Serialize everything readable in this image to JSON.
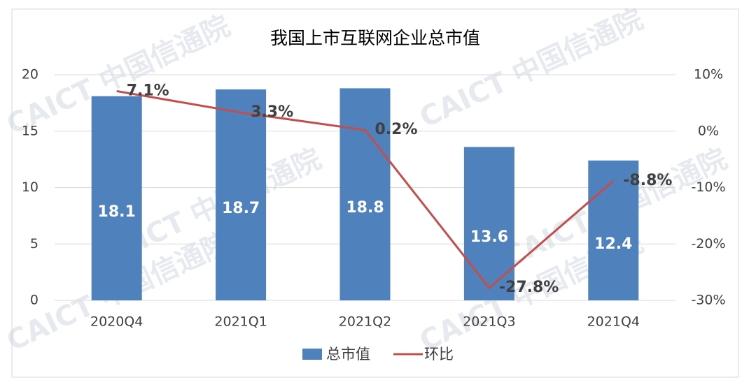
{
  "chart_data": {
    "type": "bar",
    "title": "我国上市互联网企业总市值",
    "watermark": "CAICT 中国信通院",
    "categories": [
      "2020Q4",
      "2021Q1",
      "2021Q2",
      "2021Q3",
      "2021Q4"
    ],
    "series": [
      {
        "name": "总市值",
        "type": "bar",
        "color": "#4f81bd",
        "values": [
          18.1,
          18.7,
          18.8,
          13.6,
          12.4
        ]
      },
      {
        "name": "环比",
        "type": "line",
        "axis": "y2",
        "color": "#c0504d",
        "values": [
          7.1,
          3.3,
          0.2,
          -27.8,
          -8.8
        ],
        "value_labels": [
          "7.1%",
          "3.3%",
          "0.2%",
          "-27.8%",
          "-8.8%"
        ]
      }
    ],
    "ylim": [
      0,
      20
    ],
    "yticks": [
      0,
      5,
      10,
      15,
      20
    ],
    "y2lim": [
      -30,
      10
    ],
    "y2ticks": [
      {
        "value": -30,
        "label": "-30%"
      },
      {
        "value": -20,
        "label": "-20%"
      },
      {
        "value": -10,
        "label": "-10%"
      },
      {
        "value": 0,
        "label": "0%"
      },
      {
        "value": 10,
        "label": "10%"
      }
    ],
    "grid": true,
    "legend": "bottom"
  }
}
